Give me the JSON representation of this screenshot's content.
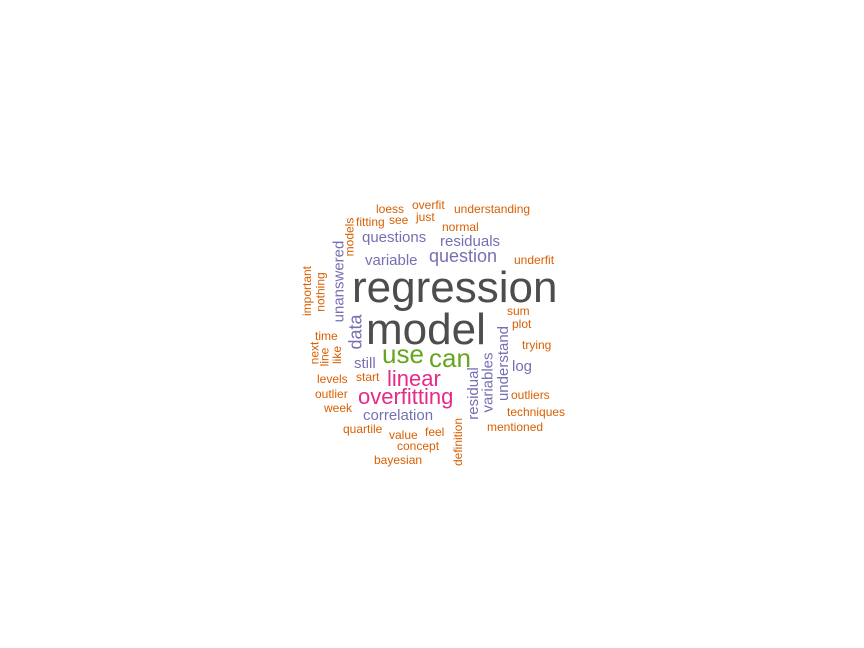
{
  "colors": {
    "dark": "#4d4d4d",
    "green": "#66a61e",
    "magenta": "#e7298a",
    "purple": "#7570b3",
    "orange": "#d95f02"
  },
  "words": [
    {
      "text": "regression",
      "color": "#4d4d4d",
      "vertical": false
    },
    {
      "text": "model",
      "color": "#4d4d4d",
      "vertical": false
    },
    {
      "text": "use",
      "color": "#66a61e",
      "vertical": false
    },
    {
      "text": "can",
      "color": "#66a61e",
      "vertical": false
    },
    {
      "text": "linear",
      "color": "#e7298a",
      "vertical": false
    },
    {
      "text": "overfitting",
      "color": "#e7298a",
      "vertical": false
    },
    {
      "text": "question",
      "color": "#7570b3",
      "vertical": false
    },
    {
      "text": "questions",
      "color": "#7570b3",
      "vertical": false
    },
    {
      "text": "residuals",
      "color": "#7570b3",
      "vertical": false
    },
    {
      "text": "variable",
      "color": "#7570b3",
      "vertical": false
    },
    {
      "text": "unanswered",
      "color": "#7570b3",
      "vertical": true
    },
    {
      "text": "data",
      "color": "#7570b3",
      "vertical": true
    },
    {
      "text": "still",
      "color": "#7570b3",
      "vertical": false
    },
    {
      "text": "correlation",
      "color": "#7570b3",
      "vertical": false
    },
    {
      "text": "residual",
      "color": "#7570b3",
      "vertical": true
    },
    {
      "text": "variables",
      "color": "#7570b3",
      "vertical": true
    },
    {
      "text": "understand",
      "color": "#7570b3",
      "vertical": true
    },
    {
      "text": "log",
      "color": "#7570b3",
      "vertical": false
    },
    {
      "text": "loess",
      "color": "#d95f02",
      "vertical": false
    },
    {
      "text": "overfit",
      "color": "#d95f02",
      "vertical": false
    },
    {
      "text": "understanding",
      "color": "#d95f02",
      "vertical": false
    },
    {
      "text": "fitting",
      "color": "#d95f02",
      "vertical": false
    },
    {
      "text": "see",
      "color": "#d95f02",
      "vertical": false
    },
    {
      "text": "just",
      "color": "#d95f02",
      "vertical": false
    },
    {
      "text": "models",
      "color": "#d95f02",
      "vertical": true
    },
    {
      "text": "normal",
      "color": "#d95f02",
      "vertical": false
    },
    {
      "text": "underfit",
      "color": "#d95f02",
      "vertical": false
    },
    {
      "text": "important",
      "color": "#d95f02",
      "vertical": true
    },
    {
      "text": "nothing",
      "color": "#d95f02",
      "vertical": true
    },
    {
      "text": "sum",
      "color": "#d95f02",
      "vertical": false
    },
    {
      "text": "plot",
      "color": "#d95f02",
      "vertical": false
    },
    {
      "text": "time",
      "color": "#d95f02",
      "vertical": false
    },
    {
      "text": "next",
      "color": "#d95f02",
      "vertical": true
    },
    {
      "text": "line",
      "color": "#d95f02",
      "vertical": true
    },
    {
      "text": "like",
      "color": "#d95f02",
      "vertical": true
    },
    {
      "text": "trying",
      "color": "#d95f02",
      "vertical": false
    },
    {
      "text": "start",
      "color": "#d95f02",
      "vertical": false
    },
    {
      "text": "levels",
      "color": "#d95f02",
      "vertical": false
    },
    {
      "text": "outlier",
      "color": "#d95f02",
      "vertical": false
    },
    {
      "text": "week",
      "color": "#d95f02",
      "vertical": false
    },
    {
      "text": "outliers",
      "color": "#d95f02",
      "vertical": false
    },
    {
      "text": "techniques",
      "color": "#d95f02",
      "vertical": false
    },
    {
      "text": "quartile",
      "color": "#d95f02",
      "vertical": false
    },
    {
      "text": "feel",
      "color": "#d95f02",
      "vertical": false
    },
    {
      "text": "value",
      "color": "#d95f02",
      "vertical": false
    },
    {
      "text": "mentioned",
      "color": "#d95f02",
      "vertical": false
    },
    {
      "text": "concept",
      "color": "#d95f02",
      "vertical": false
    },
    {
      "text": "definition",
      "color": "#d95f02",
      "vertical": true
    },
    {
      "text": "bayesian",
      "color": "#d95f02",
      "vertical": false
    }
  ]
}
